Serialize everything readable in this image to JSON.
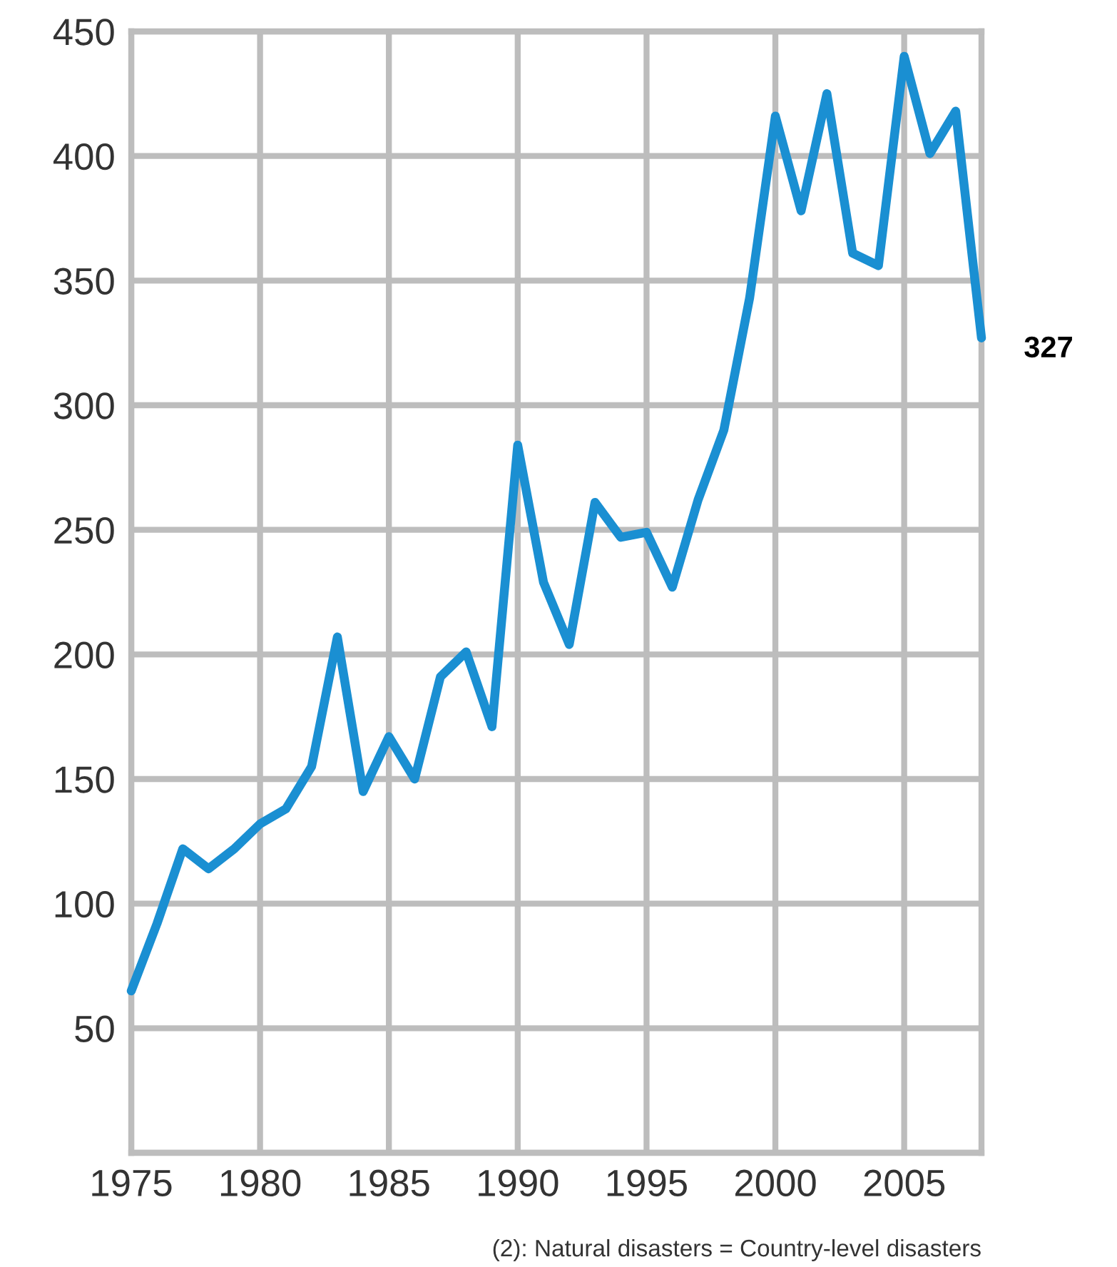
{
  "chart_data": {
    "type": "line",
    "x": [
      1975,
      1976,
      1977,
      1978,
      1979,
      1980,
      1981,
      1982,
      1983,
      1984,
      1985,
      1986,
      1987,
      1988,
      1989,
      1990,
      1991,
      1992,
      1993,
      1994,
      1995,
      1996,
      1997,
      1998,
      1999,
      2000,
      2001,
      2002,
      2003,
      2004,
      2005,
      2006,
      2007,
      2008
    ],
    "series": [
      {
        "color": "#1a8fd2",
        "values": [
          65,
          92,
          122,
          114,
          122,
          132,
          138,
          155,
          207,
          145,
          167,
          150,
          191,
          201,
          171,
          284,
          229,
          204,
          261,
          247,
          249,
          227,
          262,
          290,
          343,
          416,
          378,
          425,
          361,
          356,
          440,
          401,
          418,
          327
        ]
      }
    ],
    "xlim": [
      1975,
      2008
    ],
    "ylim": [
      0,
      450
    ],
    "xticks": [
      1975,
      1980,
      1985,
      1990,
      1995,
      2000,
      2005
    ],
    "yticks": [
      {
        "value": 0,
        "label": null
      },
      50,
      100,
      150,
      200,
      250,
      300,
      350,
      400,
      450
    ],
    "grid": true,
    "marker": "none",
    "line_style": "solid",
    "annotations": [
      "327",
      "(2): Natural disasters = Country-level disasters"
    ]
  }
}
